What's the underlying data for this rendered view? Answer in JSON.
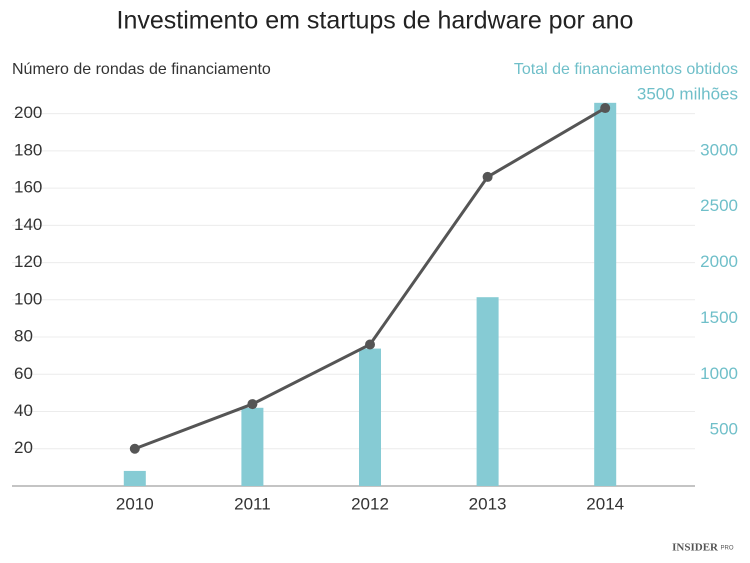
{
  "chart_data": {
    "type": "bar-line",
    "title": "Investimento em startups de hardware por ano",
    "y_label": "Número de rondas de financiamento",
    "y2_label": "Total de financiamentos obtidos",
    "categories": [
      "2010",
      "2011",
      "2012",
      "2013",
      "2014"
    ],
    "series": [
      {
        "name": "Total de financiamentos obtidos",
        "type": "bar",
        "axis": "y2",
        "color": "#86cbd4",
        "values": [
          135,
          700,
          1230,
          1690,
          3430
        ]
      },
      {
        "name": "Número de rondas de financiamento",
        "type": "line",
        "axis": "y",
        "color": "#555555",
        "values": [
          20,
          44,
          76,
          166,
          203
        ]
      }
    ],
    "ylim": [
      0,
      210
    ],
    "yticks": [
      20,
      40,
      60,
      80,
      100,
      120,
      140,
      160,
      180,
      200
    ],
    "y2lim": [
      0,
      3500
    ],
    "y2ticks": [
      500,
      1000,
      1500,
      2000,
      2500,
      3000,
      {
        "value": 3500,
        "label": "3500 milhões"
      }
    ],
    "grid": true,
    "brand": "INSIDER",
    "brand_badge": "PRO"
  }
}
